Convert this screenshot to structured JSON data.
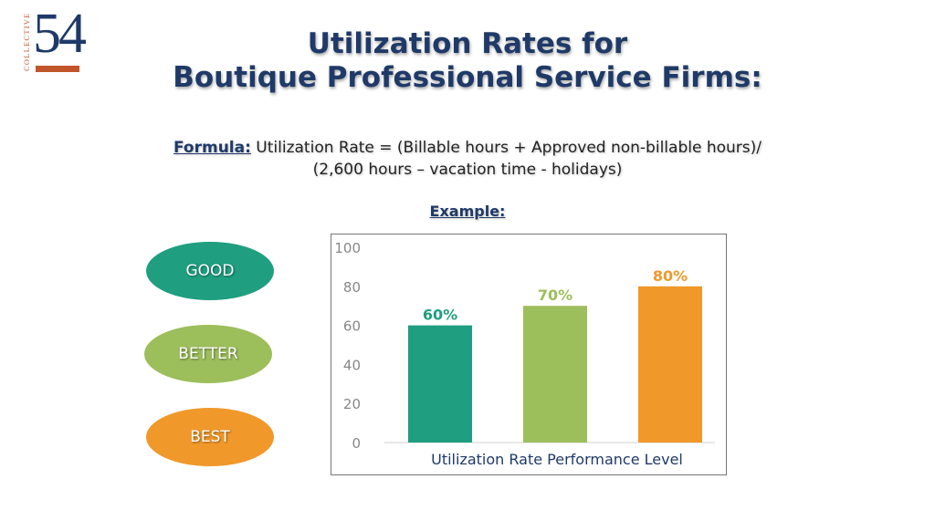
{
  "logo": {
    "number": "54",
    "word": "COLLECTIVE"
  },
  "title": {
    "line1": "Utilization Rates for",
    "line2": "Boutique Professional Service Firms:"
  },
  "formula": {
    "label": "Formula:",
    "line1": " Utilization Rate = (Billable hours + Approved non-billable hours)/",
    "line2": "(2,600 hours – vacation time - holidays)"
  },
  "example_label": "Example:",
  "levels": {
    "good": "GOOD",
    "better": "BETTER",
    "best": "BEST"
  },
  "colors": {
    "good": "#1f9e80",
    "better": "#9cbe5b",
    "best": "#f0982a",
    "title": "#1f3a68",
    "logo_accent": "#c0552a"
  },
  "chart_data": {
    "type": "bar",
    "categories": [
      "Utilization Rate Performance Level"
    ],
    "series": [
      {
        "values": [
          60
        ],
        "label": "60%",
        "color": "#1f9e80"
      },
      {
        "values": [
          70
        ],
        "label": "70%",
        "color": "#9cbe5b"
      },
      {
        "values": [
          80
        ],
        "label": "80%",
        "color": "#f0982a"
      }
    ],
    "ylim": [
      0,
      100
    ],
    "yticks": [
      "0",
      "20",
      "40",
      "60",
      "80",
      "100"
    ],
    "xlabel": "Utilization Rate Performance Level",
    "ylabel": "",
    "grid": false,
    "legend": "none"
  }
}
